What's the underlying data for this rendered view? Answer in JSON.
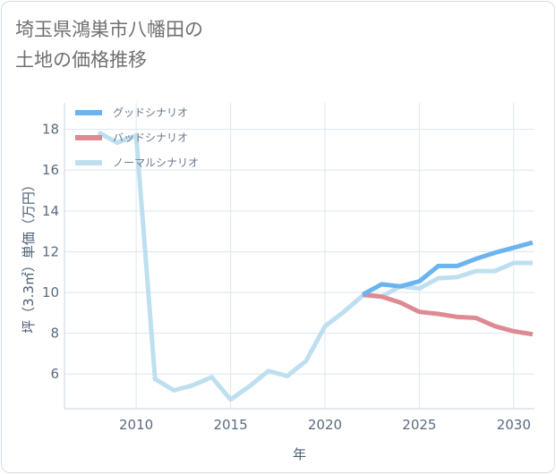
{
  "title_lines": [
    "埼玉県鴻巣市八幡田の",
    "土地の価格推移"
  ],
  "chart_data": {
    "type": "line",
    "xlabel": "年",
    "ylabel": "坪（3.3㎡）単価（万円）",
    "xlim": [
      2006.2,
      2031.1
    ],
    "ylim": [
      4.3,
      19.3
    ],
    "x_ticks": [
      2010,
      2015,
      2020,
      2025,
      2030
    ],
    "y_ticks": [
      6,
      8,
      10,
      12,
      14,
      16,
      18
    ],
    "grid": true,
    "legend_position": "top-left",
    "series": [
      {
        "name": "グッドシナリオ",
        "color": "#6ab4ef",
        "x": [
          2022,
          2023,
          2024,
          2025,
          2026,
          2027,
          2028,
          2029,
          2030,
          2031
        ],
        "y": [
          9.9,
          10.4,
          10.3,
          10.55,
          11.3,
          11.3,
          11.65,
          11.95,
          12.2,
          12.45
        ]
      },
      {
        "name": "バッドシナリオ",
        "color": "#dd8a92",
        "x": [
          2022,
          2023,
          2024,
          2025,
          2026,
          2027,
          2028,
          2029,
          2030,
          2031
        ],
        "y": [
          9.9,
          9.8,
          9.5,
          9.05,
          8.95,
          8.8,
          8.75,
          8.35,
          8.1,
          7.95
        ]
      },
      {
        "name": "ノーマルシナリオ",
        "color": "#bedff0",
        "x": [
          2008,
          2009,
          2010,
          2011,
          2012,
          2013,
          2014,
          2015,
          2016,
          2017,
          2018,
          2019,
          2020,
          2021,
          2022,
          2023,
          2024,
          2025,
          2026,
          2027,
          2028,
          2029,
          2030,
          2031
        ],
        "y": [
          17.85,
          17.35,
          17.7,
          5.75,
          5.2,
          5.45,
          5.85,
          4.75,
          5.4,
          6.15,
          5.9,
          6.65,
          8.35,
          9.05,
          9.85,
          9.8,
          10.3,
          10.2,
          10.7,
          10.75,
          11.05,
          11.05,
          11.45,
          11.45
        ]
      }
    ]
  }
}
